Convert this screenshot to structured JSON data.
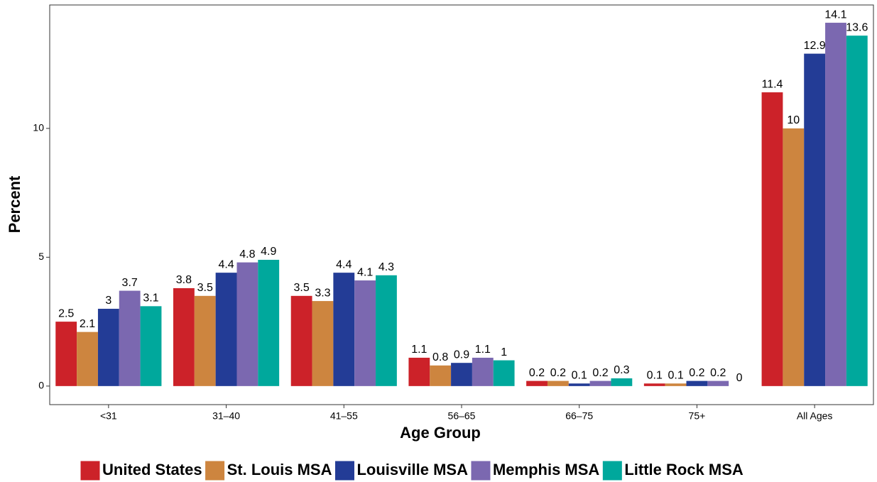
{
  "chart_data": {
    "type": "bar",
    "x_label": "Age Group",
    "y_label": "Percent",
    "categories": [
      "<31",
      "31–40",
      "41–55",
      "56–65",
      "66–75",
      "75+",
      "All Ages"
    ],
    "series": [
      {
        "name": "United States",
        "color": "#cc2229",
        "values": [
          2.5,
          3.8,
          3.5,
          1.1,
          0.2,
          0.1,
          11.4
        ]
      },
      {
        "name": "St. Louis MSA",
        "color": "#cd853f",
        "values": [
          2.1,
          3.5,
          3.3,
          0.8,
          0.2,
          0.1,
          10
        ]
      },
      {
        "name": "Louisville MSA",
        "color": "#233c96",
        "values": [
          3,
          4.4,
          4.4,
          0.9,
          0.1,
          0.2,
          12.9
        ]
      },
      {
        "name": "Memphis MSA",
        "color": "#7b68b0",
        "values": [
          3.7,
          4.8,
          4.1,
          1.1,
          0.2,
          0.2,
          14.1
        ]
      },
      {
        "name": "Little Rock MSA",
        "color": "#00a89c",
        "values": [
          3.1,
          4.9,
          4.3,
          1,
          0.3,
          0,
          13.6
        ]
      }
    ],
    "ylim": [
      -0.72,
      14.79
    ],
    "yticks": [
      0,
      5,
      10
    ],
    "grid": false,
    "legend_position": "bottom"
  }
}
